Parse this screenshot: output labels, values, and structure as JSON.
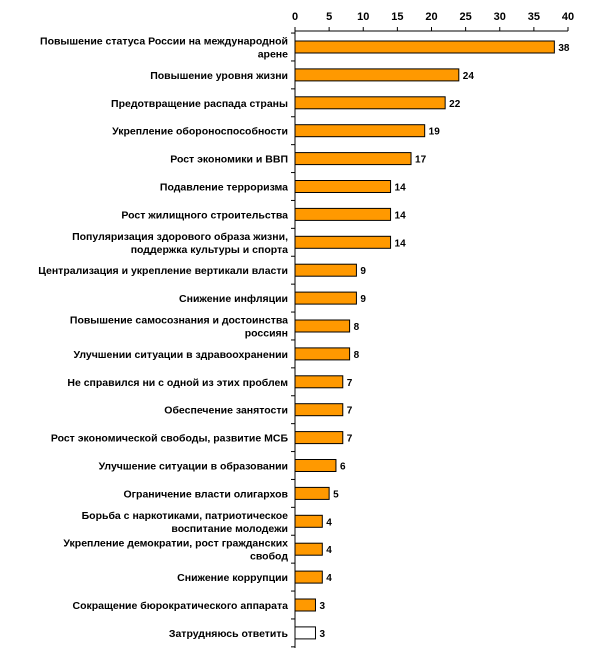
{
  "chart_data": {
    "type": "bar",
    "orientation": "horizontal",
    "xlim": [
      0,
      40
    ],
    "x_ticks": [
      0,
      5,
      10,
      15,
      20,
      25,
      30,
      35,
      40
    ],
    "x_axis_position": "top",
    "grid": false,
    "categories": [
      [
        "Повышение статуса России на международной",
        "арене"
      ],
      [
        "Повышение уровня жизни"
      ],
      [
        "Предотвращение распада страны"
      ],
      [
        "Укрепление обороноспособности"
      ],
      [
        "Рост экономики и ВВП"
      ],
      [
        "Подавление терроризма"
      ],
      [
        "Рост жилищного строительства"
      ],
      [
        "Популяризация здорового образа жизни,",
        "поддержка культуры и спорта"
      ],
      [
        "Централизация и укрепление вертикали власти"
      ],
      [
        "Снижение инфляции"
      ],
      [
        "Повышение самосознания и достоинства",
        "россиян"
      ],
      [
        "Улучшении ситуации в здравоохранении"
      ],
      [
        "Не справился ни с одной из этих проблем"
      ],
      [
        "Обеспечение занятости"
      ],
      [
        "Рост экономической свободы, развитие МСБ"
      ],
      [
        "Улучшение ситуации в образовании"
      ],
      [
        "Ограничение власти олигархов"
      ],
      [
        "Борьба с наркотиками, патриотическое",
        "воспитание молодежи"
      ],
      [
        "Укрепление демократии, рост гражданских",
        "свобод"
      ],
      [
        "Снижение коррупции"
      ],
      [
        "Сокращение бюрократического аппарата"
      ],
      [
        "Затрудняюсь ответить"
      ]
    ],
    "values": [
      38,
      24,
      22,
      19,
      17,
      14,
      14,
      14,
      9,
      9,
      8,
      8,
      7,
      7,
      7,
      6,
      5,
      4,
      4,
      4,
      3,
      3
    ],
    "bar_colors": [
      "#FF9900",
      "#FF9900",
      "#FF9900",
      "#FF9900",
      "#FF9900",
      "#FF9900",
      "#FF9900",
      "#FF9900",
      "#FF9900",
      "#FF9900",
      "#FF9900",
      "#FF9900",
      "#FF9900",
      "#FF9900",
      "#FF9900",
      "#FF9900",
      "#FF9900",
      "#FF9900",
      "#FF9900",
      "#FF9900",
      "#FF9900",
      "#FFFFFF"
    ],
    "bar_outline_color": "#000000"
  }
}
